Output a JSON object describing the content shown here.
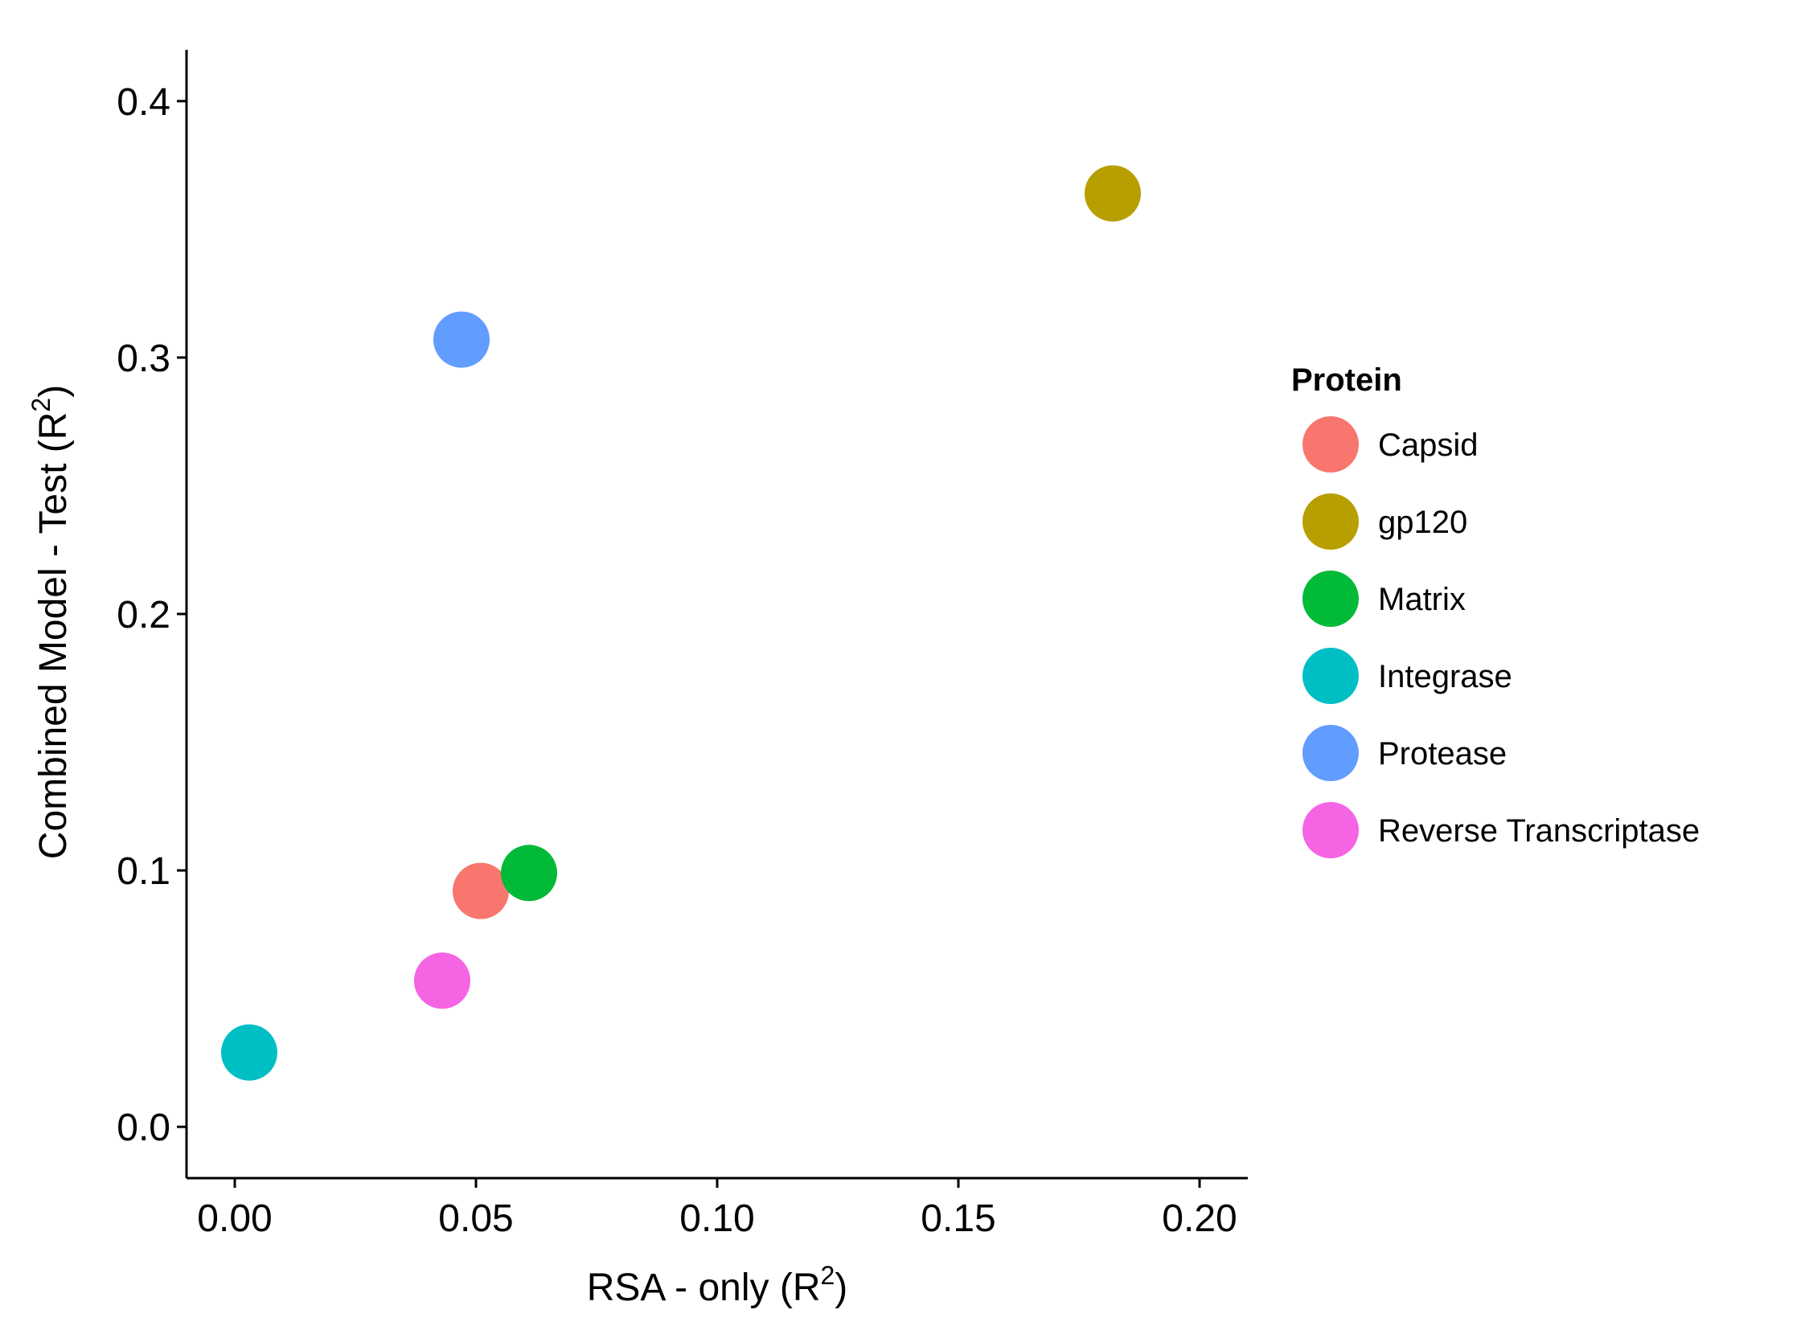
{
  "chart_data": {
    "type": "scatter",
    "title": "",
    "xlabel": "RSA - only (R",
    "xlabel_sup": "2",
    "xlabel_end": ")",
    "ylabel": "Combined Model - Test (R",
    "ylabel_sup": "2",
    "ylabel_end": ")",
    "xlim": [
      -0.01,
      0.21
    ],
    "ylim": [
      -0.02,
      0.42
    ],
    "x_ticks": [
      0.0,
      0.05,
      0.1,
      0.15,
      0.2
    ],
    "x_tick_labels": [
      "0.00",
      "0.05",
      "0.10",
      "0.15",
      "0.20"
    ],
    "y_ticks": [
      0.0,
      0.1,
      0.2,
      0.3,
      0.4
    ],
    "y_tick_labels": [
      "0.0",
      "0.1",
      "0.2",
      "0.3",
      "0.4"
    ],
    "grid": false,
    "legend_placement": "right",
    "legend_title": "Protein",
    "series": [
      {
        "name": "Capsid",
        "color": "#F8766D",
        "x": 0.051,
        "y": 0.092
      },
      {
        "name": "gp120",
        "color": "#B79F00",
        "x": 0.182,
        "y": 0.364
      },
      {
        "name": "Matrix",
        "color": "#00BA38",
        "x": 0.061,
        "y": 0.099
      },
      {
        "name": "Integrase",
        "color": "#00BFC4",
        "x": 0.003,
        "y": 0.029
      },
      {
        "name": "Protease",
        "color": "#619CFF",
        "x": 0.047,
        "y": 0.307
      },
      {
        "name": "Reverse Transcriptase",
        "color": "#F564E3",
        "x": 0.043,
        "y": 0.057
      }
    ]
  }
}
